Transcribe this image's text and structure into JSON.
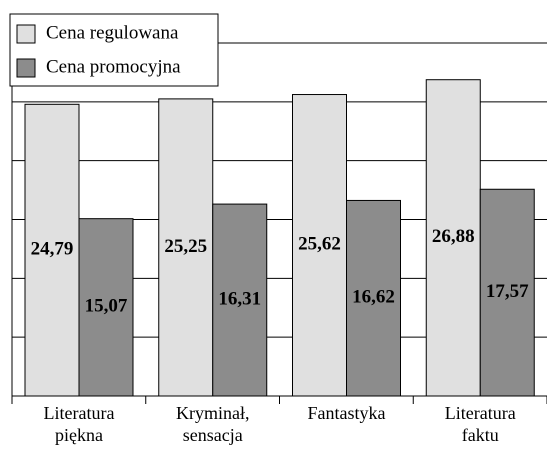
{
  "chart_data": {
    "type": "bar",
    "categories": [
      "Literatura\npiękna",
      "Kryminał,\nsensacja",
      "Fantastyka",
      "Literatura\nfaktu"
    ],
    "series": [
      {
        "name": "Cena regulowana",
        "color": "#e0e0e0",
        "values": [
          24.79,
          25.25,
          25.62,
          26.88
        ],
        "value_labels": [
          "24,79",
          "25,25",
          "25,62",
          "26,88"
        ]
      },
      {
        "name": "Cena promocyjna",
        "color": "#8c8c8c",
        "values": [
          15.07,
          16.31,
          16.62,
          17.57
        ],
        "value_labels": [
          "15,07",
          "16,31",
          "16,62",
          "17,57"
        ]
      }
    ],
    "ylim": [
      0,
      30
    ],
    "yticks": [
      0,
      5,
      10,
      15,
      20,
      25,
      30
    ],
    "grid": true,
    "legend": "top-left"
  }
}
